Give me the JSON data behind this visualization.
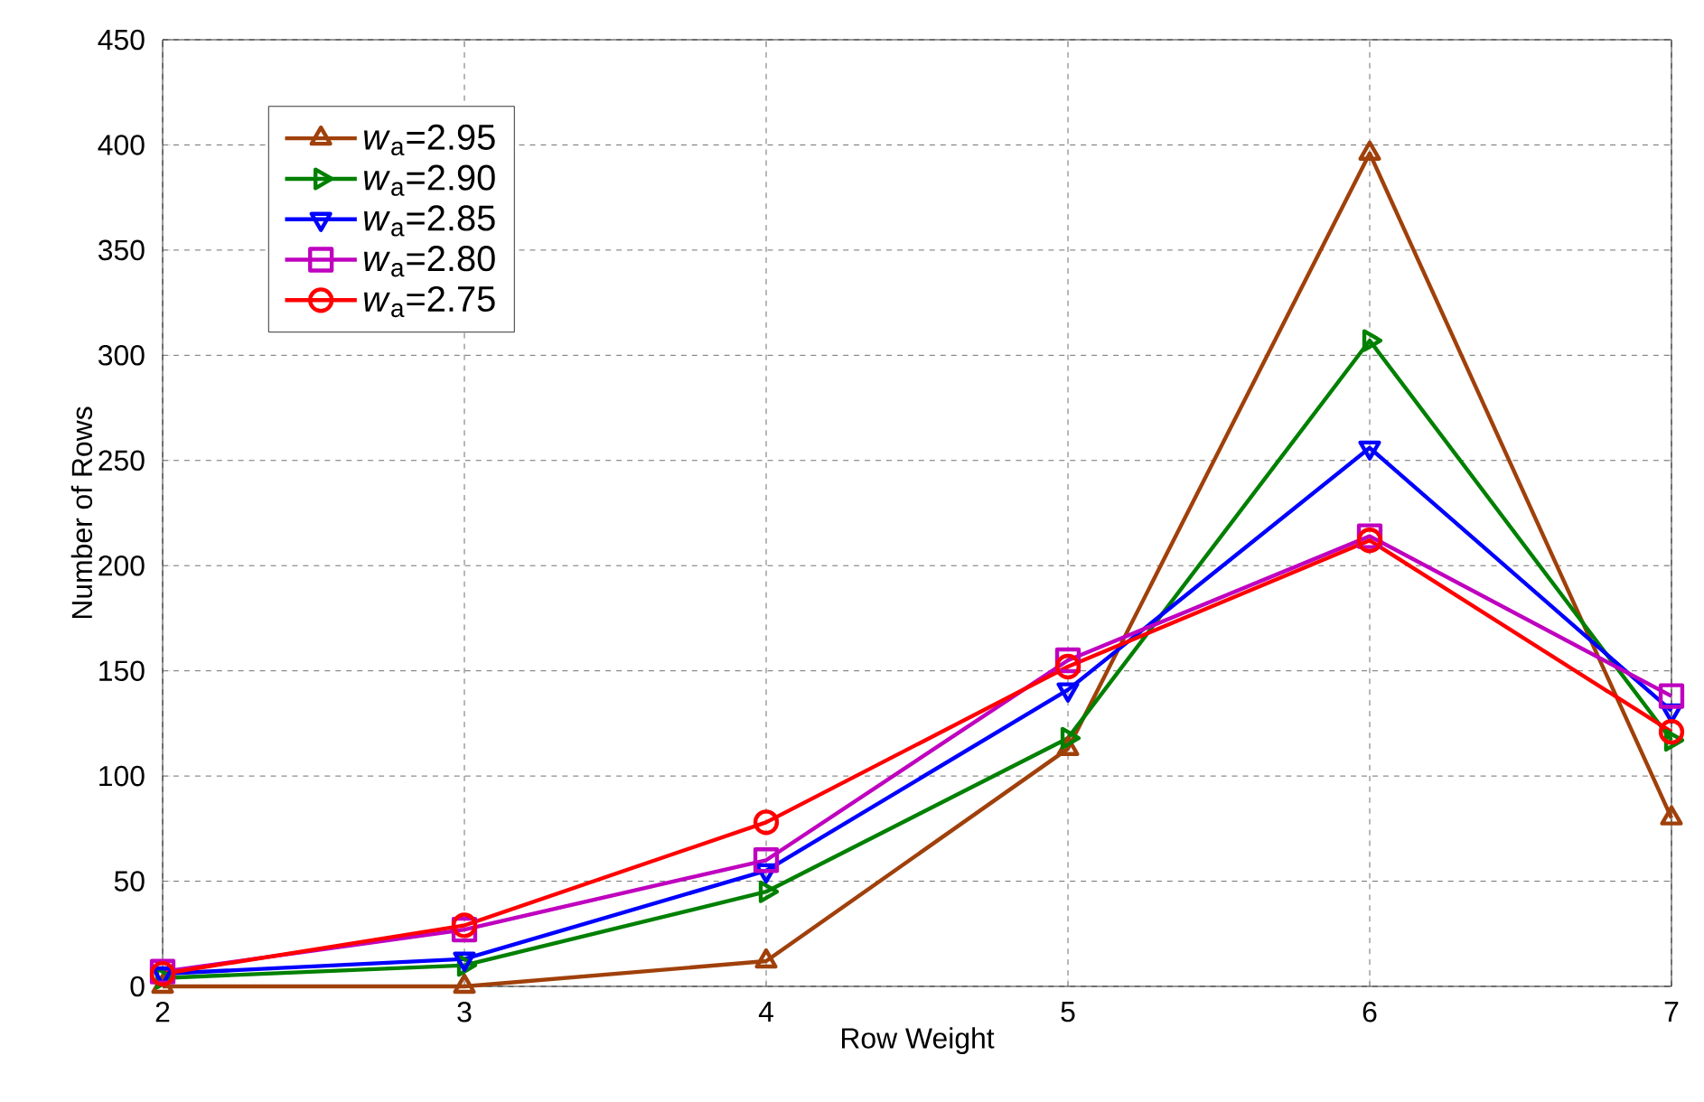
{
  "chart_data": {
    "type": "line",
    "xlabel": "Row Weight",
    "ylabel": "Number of Rows",
    "x": [
      2,
      3,
      4,
      5,
      6,
      7
    ],
    "xlim": [
      2,
      7
    ],
    "xticks": [
      2,
      3,
      4,
      5,
      6,
      7
    ],
    "ylim": [
      0,
      450
    ],
    "yticks": [
      0,
      50,
      100,
      150,
      200,
      250,
      300,
      350,
      400,
      450
    ],
    "grid": true,
    "legend": "top left",
    "line_style": "solid",
    "series": [
      {
        "name": "*w*$_{a}$=2.95",
        "color": "#a0400a",
        "marker": "triangle",
        "values": [
          0,
          0,
          12,
          113,
          396,
          80
        ]
      },
      {
        "name": "*w*$_{a}$=2.90",
        "color": "#008000",
        "marker": "triangle-right",
        "values": [
          4,
          10,
          45,
          118,
          307,
          117
        ]
      },
      {
        "name": "*w*$_{a}$=2.85",
        "color": "#0000ff",
        "marker": "triangle-down",
        "values": [
          6,
          13,
          55,
          141,
          256,
          131
        ]
      },
      {
        "name": "*w*$_{a}$=2.80",
        "color": "#bf00bf",
        "marker": "square",
        "values": [
          7,
          27,
          60,
          155,
          214,
          138
        ]
      },
      {
        "name": "*w*$_{a}$=2.75",
        "color": "#ff0000",
        "marker": "circle",
        "values": [
          6,
          29,
          78,
          152,
          212,
          121
        ]
      }
    ]
  }
}
